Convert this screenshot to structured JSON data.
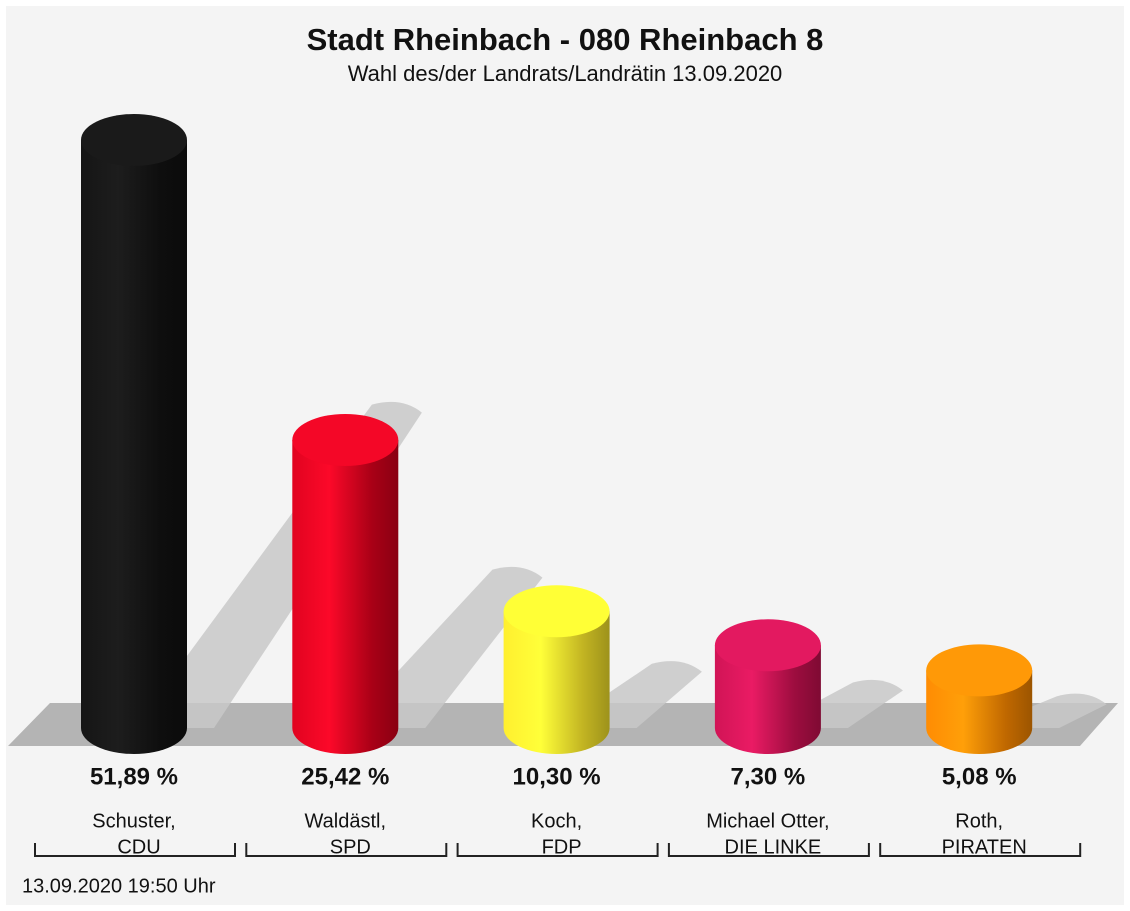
{
  "chart_data": {
    "type": "bar3d",
    "title": "Stadt Rheinbach - 080 Rheinbach 8",
    "subtitle": "Wahl des/der Landrats/Landrätin 13.09.2020",
    "categories": [
      [
        "Schuster,",
        "CDU"
      ],
      [
        "Waldästl,",
        "SPD"
      ],
      [
        "Koch,",
        "FDP"
      ],
      [
        "Michael Otter,",
        "DIE LINKE"
      ],
      [
        "Roth,",
        "PIRATEN"
      ]
    ],
    "values": [
      51.89,
      25.42,
      10.3,
      7.3,
      5.08
    ],
    "value_labels": [
      "51,89 %",
      "25,42 %",
      "10,30 %",
      "7,30 %",
      "5,08 %"
    ],
    "colors": [
      "#111111",
      "#d3001c",
      "#f2e12a",
      "#c4104f",
      "#f08200"
    ],
    "timestamp": "13.09.2020 19:50 Uhr"
  }
}
